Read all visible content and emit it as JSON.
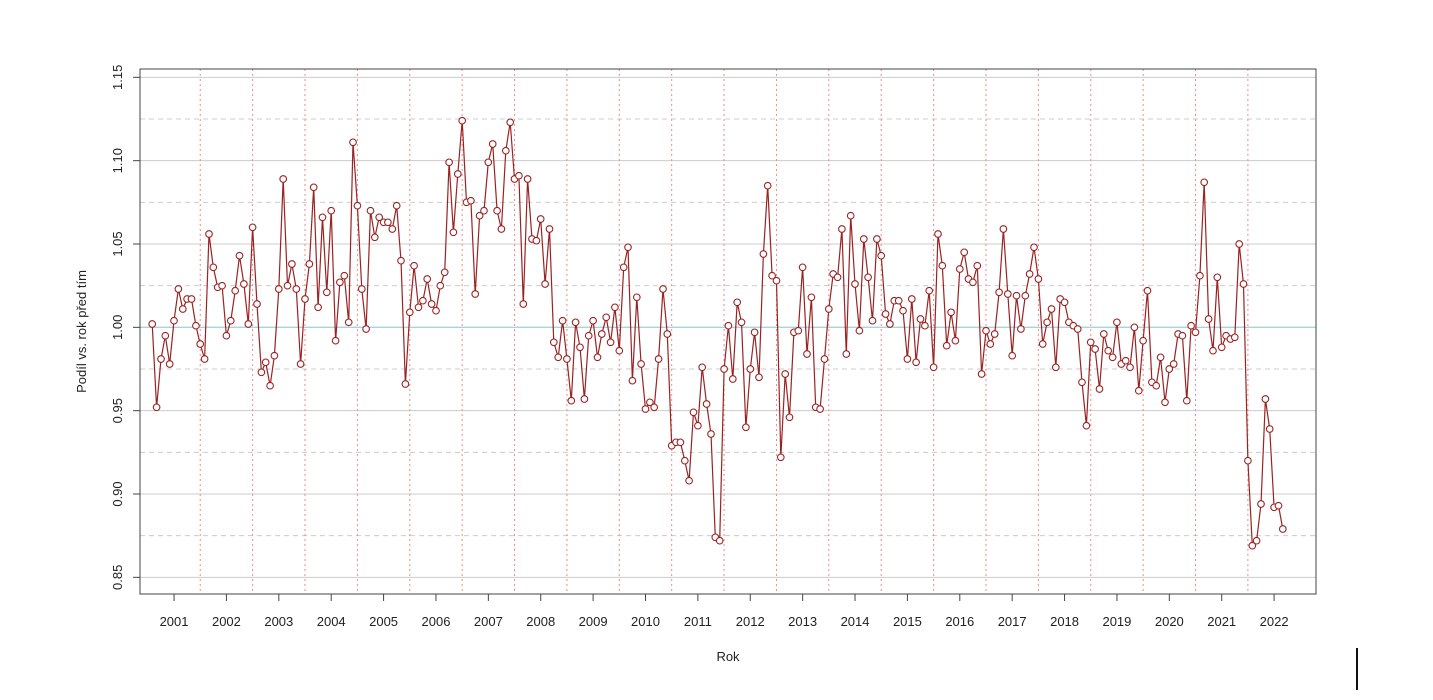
{
  "chart_data": {
    "type": "line",
    "xlabel": "Rok",
    "ylabel": "Podíl vs. rok před tím",
    "xlim": [
      2000.35,
      2022.8
    ],
    "ylim": [
      0.84,
      1.155
    ],
    "x_ticks": [
      2001,
      2002,
      2003,
      2004,
      2005,
      2006,
      2007,
      2008,
      2009,
      2010,
      2011,
      2012,
      2013,
      2014,
      2015,
      2016,
      2017,
      2018,
      2019,
      2020,
      2021,
      2022
    ],
    "x_tick_labels": [
      "2001",
      "2002",
      "2003",
      "2004",
      "2005",
      "2006",
      "2007",
      "2008",
      "2009",
      "2010",
      "2011",
      "2012",
      "2013",
      "2014",
      "2015",
      "2016",
      "2017",
      "2018",
      "2019",
      "2020",
      "2021",
      "2022"
    ],
    "y_ticks": [
      0.85,
      0.9,
      0.95,
      1.0,
      1.05,
      1.1,
      1.15
    ],
    "y_tick_labels": [
      "0.85",
      "0.90",
      "0.95",
      "1.00",
      "1.05",
      "1.10",
      "1.15"
    ],
    "y_minor_grid": [
      0.875,
      0.925,
      0.975,
      1.025,
      1.075,
      1.125
    ],
    "reference_line": 1.0,
    "vertical_dividers": [
      2001.5,
      2002.5,
      2003.5,
      2004.5,
      2005.5,
      2006.5,
      2007.5,
      2008.5,
      2009.5,
      2010.5,
      2011.5,
      2012.5,
      2013.5,
      2014.5,
      2015.5,
      2016.5,
      2017.5,
      2018.5,
      2019.5,
      2020.5,
      2021.5
    ],
    "grid": true,
    "legend": "none",
    "colors": {
      "series": "#9a2222",
      "reference": "#a8d4dc",
      "grid": "#cccccc",
      "divider": "#f08a8a"
    },
    "series": [
      {
        "x_start": 2000.5833,
        "x_step": 0.083333,
        "values": [
          1.002,
          0.952,
          0.981,
          0.995,
          0.978,
          1.004,
          1.023,
          1.011,
          1.017,
          1.017,
          1.001,
          0.99,
          0.981,
          1.056,
          1.036,
          1.024,
          1.025,
          0.995,
          1.004,
          1.022,
          1.043,
          1.026,
          1.002,
          1.06,
          1.014,
          0.973,
          0.979,
          0.965,
          0.983,
          1.023,
          1.089,
          1.025,
          1.038,
          1.023,
          0.978,
          1.017,
          1.038,
          1.084,
          1.012,
          1.066,
          1.021,
          1.07,
          0.992,
          1.027,
          1.031,
          1.003,
          1.111,
          1.073,
          1.023,
          0.999,
          1.07,
          1.054,
          1.066,
          1.063,
          1.063,
          1.059,
          1.073,
          1.04,
          0.966,
          1.009,
          1.037,
          1.012,
          1.016,
          1.029,
          1.014,
          1.01,
          1.025,
          1.033,
          1.099,
          1.057,
          1.092,
          1.124,
          1.075,
          1.076,
          1.02,
          1.067,
          1.07,
          1.099,
          1.11,
          1.07,
          1.059,
          1.106,
          1.123,
          1.089,
          1.091,
          1.014,
          1.089,
          1.053,
          1.052,
          1.065,
          1.026,
          1.059,
          0.991,
          0.982,
          1.004,
          0.981,
          0.956,
          1.003,
          0.988,
          0.957,
          0.995,
          1.004,
          0.982,
          0.996,
          1.006,
          0.991,
          1.012,
          0.986,
          1.036,
          1.048,
          0.968,
          1.018,
          0.978,
          0.951,
          0.955,
          0.952,
          0.981,
          1.023,
          0.996,
          0.929,
          0.931,
          0.931,
          0.92,
          0.908,
          0.949,
          0.941,
          0.976,
          0.954,
          0.936,
          0.874,
          0.872,
          0.975,
          1.001,
          0.969,
          1.015,
          1.003,
          0.94,
          0.975,
          0.997,
          0.97,
          1.044,
          1.085,
          1.031,
          1.028,
          0.922,
          0.972,
          0.946,
          0.997,
          0.998,
          1.036,
          0.984,
          1.018,
          0.952,
          0.951,
          0.981,
          1.011,
          1.032,
          1.03,
          1.059,
          0.984,
          1.067,
          1.026,
          0.998,
          1.053,
          1.03,
          1.004,
          1.053,
          1.043,
          1.008,
          1.002,
          1.016,
          1.016,
          1.01,
          0.981,
          1.017,
          0.979,
          1.005,
          1.001,
          1.022,
          0.976,
          1.056,
          1.037,
          0.989,
          1.009,
          0.992,
          1.035,
          1.045,
          1.029,
          1.027,
          1.037,
          0.972,
          0.998,
          0.99,
          0.996,
          1.021,
          1.059,
          1.02,
          0.983,
          1.019,
          0.999,
          1.019,
          1.032,
          1.048,
          1.029,
          0.99,
          1.003,
          1.011,
          0.976,
          1.017,
          1.015,
          1.003,
          1.001,
          0.999,
          0.967,
          0.941,
          0.991,
          0.987,
          0.963,
          0.996,
          0.986,
          0.982,
          1.003,
          0.978,
          0.98,
          0.976,
          1.0,
          0.962,
          0.992,
          1.022,
          0.967,
          0.965,
          0.982,
          0.955,
          0.975,
          0.978,
          0.996,
          0.995,
          0.956,
          1.001,
          0.997,
          1.031,
          1.087,
          1.005,
          0.986,
          1.03,
          0.988,
          0.995,
          0.993,
          0.994,
          1.05,
          1.026,
          0.92,
          0.869,
          0.872,
          0.894,
          0.957,
          0.939,
          0.892,
          0.893,
          0.879
        ]
      }
    ]
  }
}
